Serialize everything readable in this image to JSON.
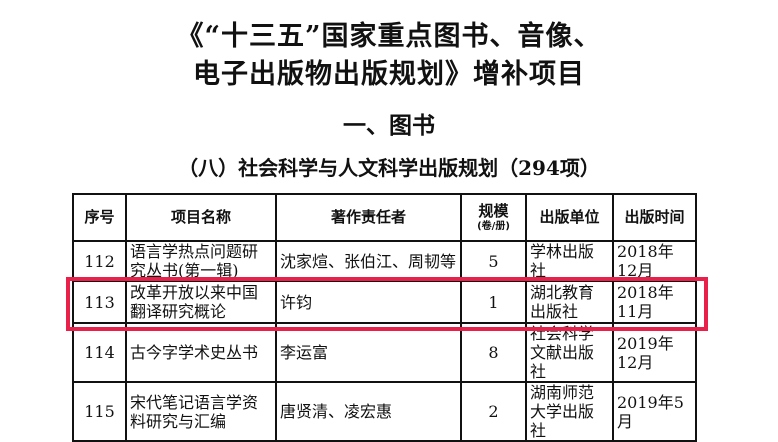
{
  "title": {
    "line1": "《“十三五”国家重点图书、音像、",
    "line2": "电子出版物出版规划》增补项目"
  },
  "section": "一、图书",
  "subsection": "（八）社会科学与人文科学出版规划（294项）",
  "table": {
    "headers": [
      "序号",
      "项目名称",
      "著作责任者",
      "规模",
      "(卷/册)",
      "出版单位",
      "出版时间"
    ],
    "rows": [
      [
        "112",
        "语言学热点问题研究丛书(第一辑)",
        "沈家煊、张伯江、周韧等",
        "5",
        "学林出版社",
        "2018年12月"
      ],
      [
        "113",
        "改革开放以来中国翻译研究概论",
        "许钧",
        "1",
        "湖北教育出版社",
        "2018年11月"
      ],
      [
        "114",
        "古今字学术史丛书",
        "李运富",
        "8",
        "社会科学文献出版社",
        "2019年12月"
      ],
      [
        "115",
        "宋代笔记语言学资料研究与汇编",
        "唐贤清、凌宏惠",
        "2",
        "湖南师范大学出版社",
        "2019年5月"
      ]
    ]
  },
  "highlight_color": "#e8204a"
}
